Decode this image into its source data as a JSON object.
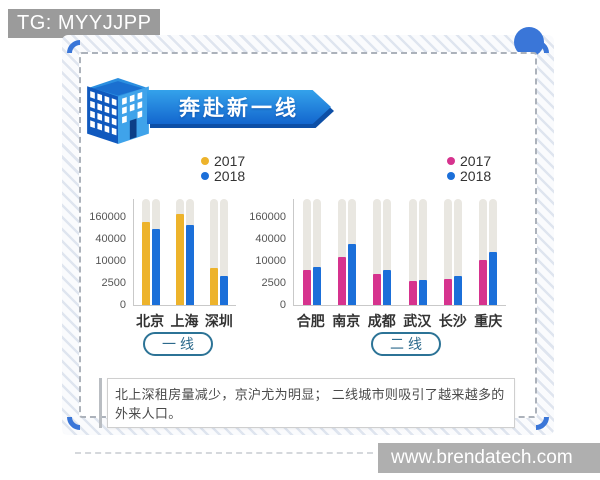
{
  "badge": {
    "text": "TG: MYYJJPP"
  },
  "header": {
    "title": "奔赴新一线"
  },
  "buttons": {
    "tier1": "一线",
    "tier2": "二线"
  },
  "caption": {
    "text": "北上深租房量减少，京沪尤为明显； 二线城市则吸引了越来越多的外来人口。"
  },
  "watermark": {
    "text": "www.brendatech.com"
  },
  "colors": {
    "accent_blue_2018": "#1b6fd9",
    "yellow_2017": "#edb32b",
    "pink_2017": "#d6338e",
    "banner_top": "#34a2eb",
    "banner_bottom": "#1366ce",
    "track_gray": "#e9e7e1",
    "button_teal": "#2c7396",
    "corner_arc_blue": "#3a76d8"
  },
  "chart_data": [
    {
      "type": "bar",
      "title": "一线",
      "categories": [
        "北京",
        "上海",
        "深圳"
      ],
      "series": [
        {
          "name": "2017",
          "color": "#edb32b",
          "values": [
            120000,
            200000,
            6500
          ]
        },
        {
          "name": "2018",
          "color": "#1b6fd9",
          "values": [
            75000,
            100000,
            4000
          ]
        }
      ],
      "yticks": [
        0,
        2500,
        10000,
        40000,
        160000
      ],
      "y_scale": "quasi-log, each tick step is x4",
      "xlabel": "",
      "ylabel": "",
      "grid": false,
      "background_tracks": true,
      "legend_position": "top"
    },
    {
      "type": "bar",
      "title": "二线",
      "categories": [
        "合肥",
        "南京",
        "成都",
        "武汉",
        "长沙",
        "重庆"
      ],
      "series": [
        {
          "name": "2017",
          "color": "#d6338e",
          "values": [
            5800,
            13000,
            4500,
            2800,
            3300,
            11000
          ]
        },
        {
          "name": "2018",
          "color": "#1b6fd9",
          "values": [
            7000,
            30000,
            5600,
            3100,
            3900,
            18000
          ]
        }
      ],
      "yticks": [
        0,
        2500,
        10000,
        40000,
        160000
      ],
      "y_scale": "quasi-log, each tick step is x4",
      "xlabel": "",
      "ylabel": "",
      "grid": false,
      "background_tracks": true,
      "legend_position": "top"
    }
  ]
}
